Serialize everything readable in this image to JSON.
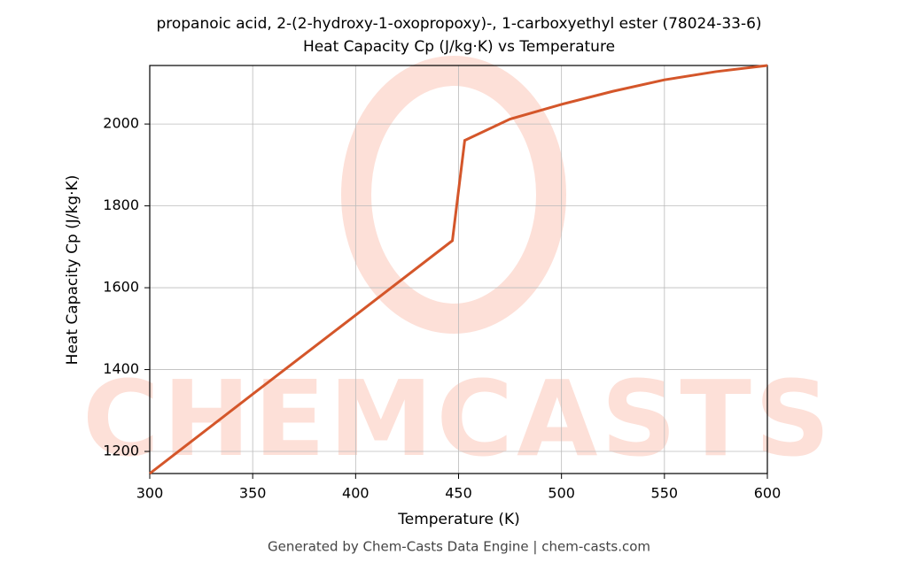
{
  "chart_data": {
    "type": "line",
    "title": "propanoic acid, 2-(2-hydroxy-1-oxopropoxy)-, 1-carboxyethyl ester (78024-33-6)",
    "subtitle": "Heat Capacity Cp (J/kg·K) vs Temperature",
    "x_label": "Temperature (K)",
    "y_label": "Heat Capacity Cp (J/kg·K)",
    "x": [
      300,
      350,
      400,
      447,
      453,
      475,
      500,
      525,
      550,
      575,
      600
    ],
    "series": [
      {
        "name": "Cp",
        "color": "#d4562a",
        "values": [
          1146,
          1340,
          1533,
          1715,
          1960,
          2012,
          2048,
          2080,
          2108,
          2128,
          2143
        ]
      }
    ],
    "xlim": [
      300,
      600
    ],
    "ylim": [
      1146,
      2143
    ],
    "xticks": [
      300,
      350,
      400,
      450,
      500,
      550,
      600
    ],
    "yticks": [
      1200,
      1400,
      1600,
      1800,
      2000
    ],
    "grid": true
  },
  "watermark": "CHEMCASTS",
  "footer": "Generated by Chem-Casts Data Engine | chem-casts.com"
}
